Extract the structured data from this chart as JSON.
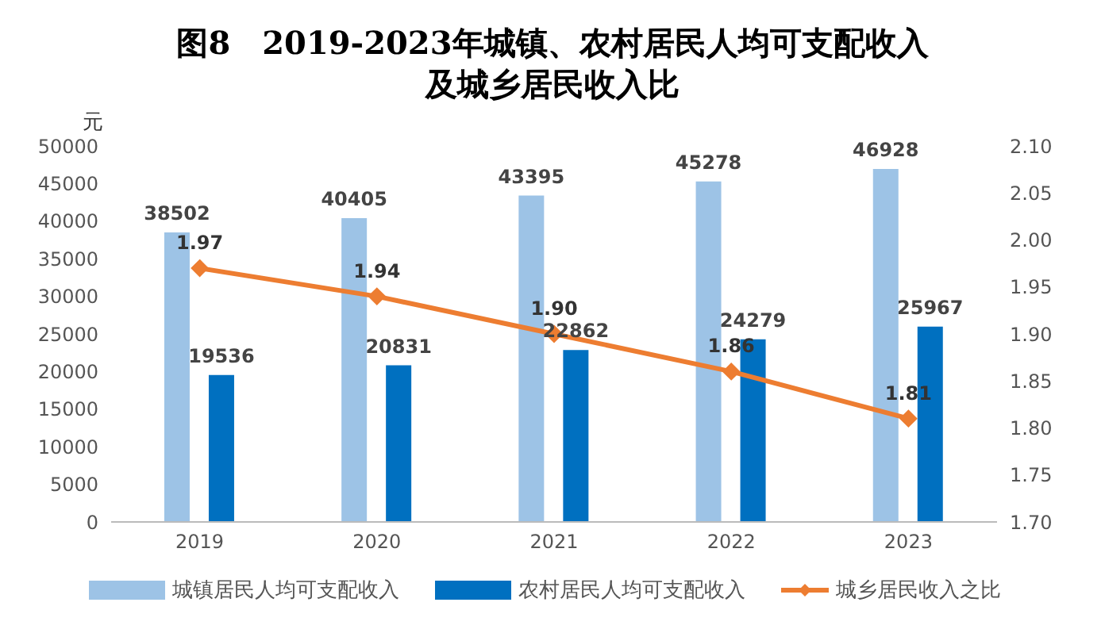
{
  "chart_data": {
    "type": "bar",
    "title": "图8　2019-2023年城镇、农村居民人均可支配收入及城乡居民收入比",
    "ylabel": "元",
    "categories": [
      "2019",
      "2020",
      "2021",
      "2022",
      "2023"
    ],
    "series": [
      {
        "name": "城镇居民人均可支配收入",
        "color": "#9dc3e6",
        "values": [
          38502,
          40405,
          43395,
          45278,
          46928
        ]
      },
      {
        "name": "农村居民人均可支配收入",
        "color": "#0070c0",
        "values": [
          19536,
          20831,
          22862,
          24279,
          25967
        ]
      },
      {
        "name": "城乡居民收入之比",
        "type": "line",
        "axis": "y2",
        "color": "#ed7d31",
        "values": [
          1.97,
          1.94,
          1.9,
          1.86,
          1.81
        ],
        "value_labels": [
          "1.97",
          "1.94",
          "1.90",
          "1.86",
          "1.81"
        ]
      }
    ],
    "ylim": [
      0,
      50000
    ],
    "yticks": [
      0,
      5000,
      10000,
      15000,
      20000,
      25000,
      30000,
      35000,
      40000,
      45000,
      50000
    ],
    "y2lim": [
      1.7,
      2.1
    ],
    "y2ticks": [
      {
        "value": 1.7,
        "label": "1.70"
      },
      {
        "value": 1.75,
        "label": "1.75"
      },
      {
        "value": 1.8,
        "label": "1.80"
      },
      {
        "value": 1.85,
        "label": "1.85"
      },
      {
        "value": 1.9,
        "label": "1.90"
      },
      {
        "value": 1.95,
        "label": "1.95"
      },
      {
        "value": 2.0,
        "label": "2.00"
      },
      {
        "value": 2.05,
        "label": "2.05"
      },
      {
        "value": 2.1,
        "label": "2.10"
      }
    ],
    "data_labels": true,
    "marker": "diamond",
    "legend": "bottom"
  }
}
